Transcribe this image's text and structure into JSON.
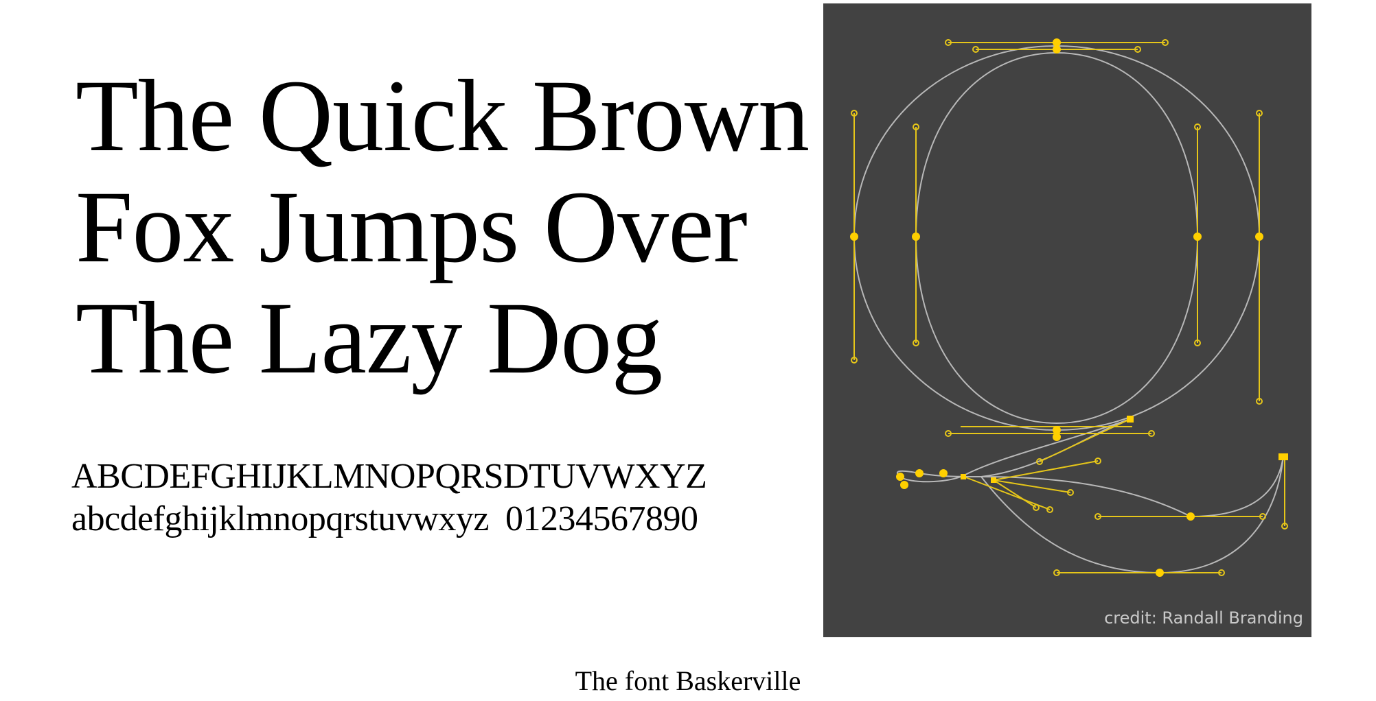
{
  "headline": {
    "lines": [
      "The Quick Brown",
      "Fox Jumps Over",
      "The Lazy Dog"
    ]
  },
  "alphabet": {
    "uppercase": "ABCDEFGHIJKLMNOPQRSDTUVWXYZ",
    "lowercase": "abcdefghijklmnopqrstuvwxyz",
    "digits": "01234567890"
  },
  "illustration": {
    "credit": "credit: Randall Branding",
    "colors": {
      "background": "#424242",
      "outline": "#b8b8b8",
      "handle": "#e6c619",
      "point": "#ffd000"
    }
  },
  "caption": "The font Baskerville"
}
